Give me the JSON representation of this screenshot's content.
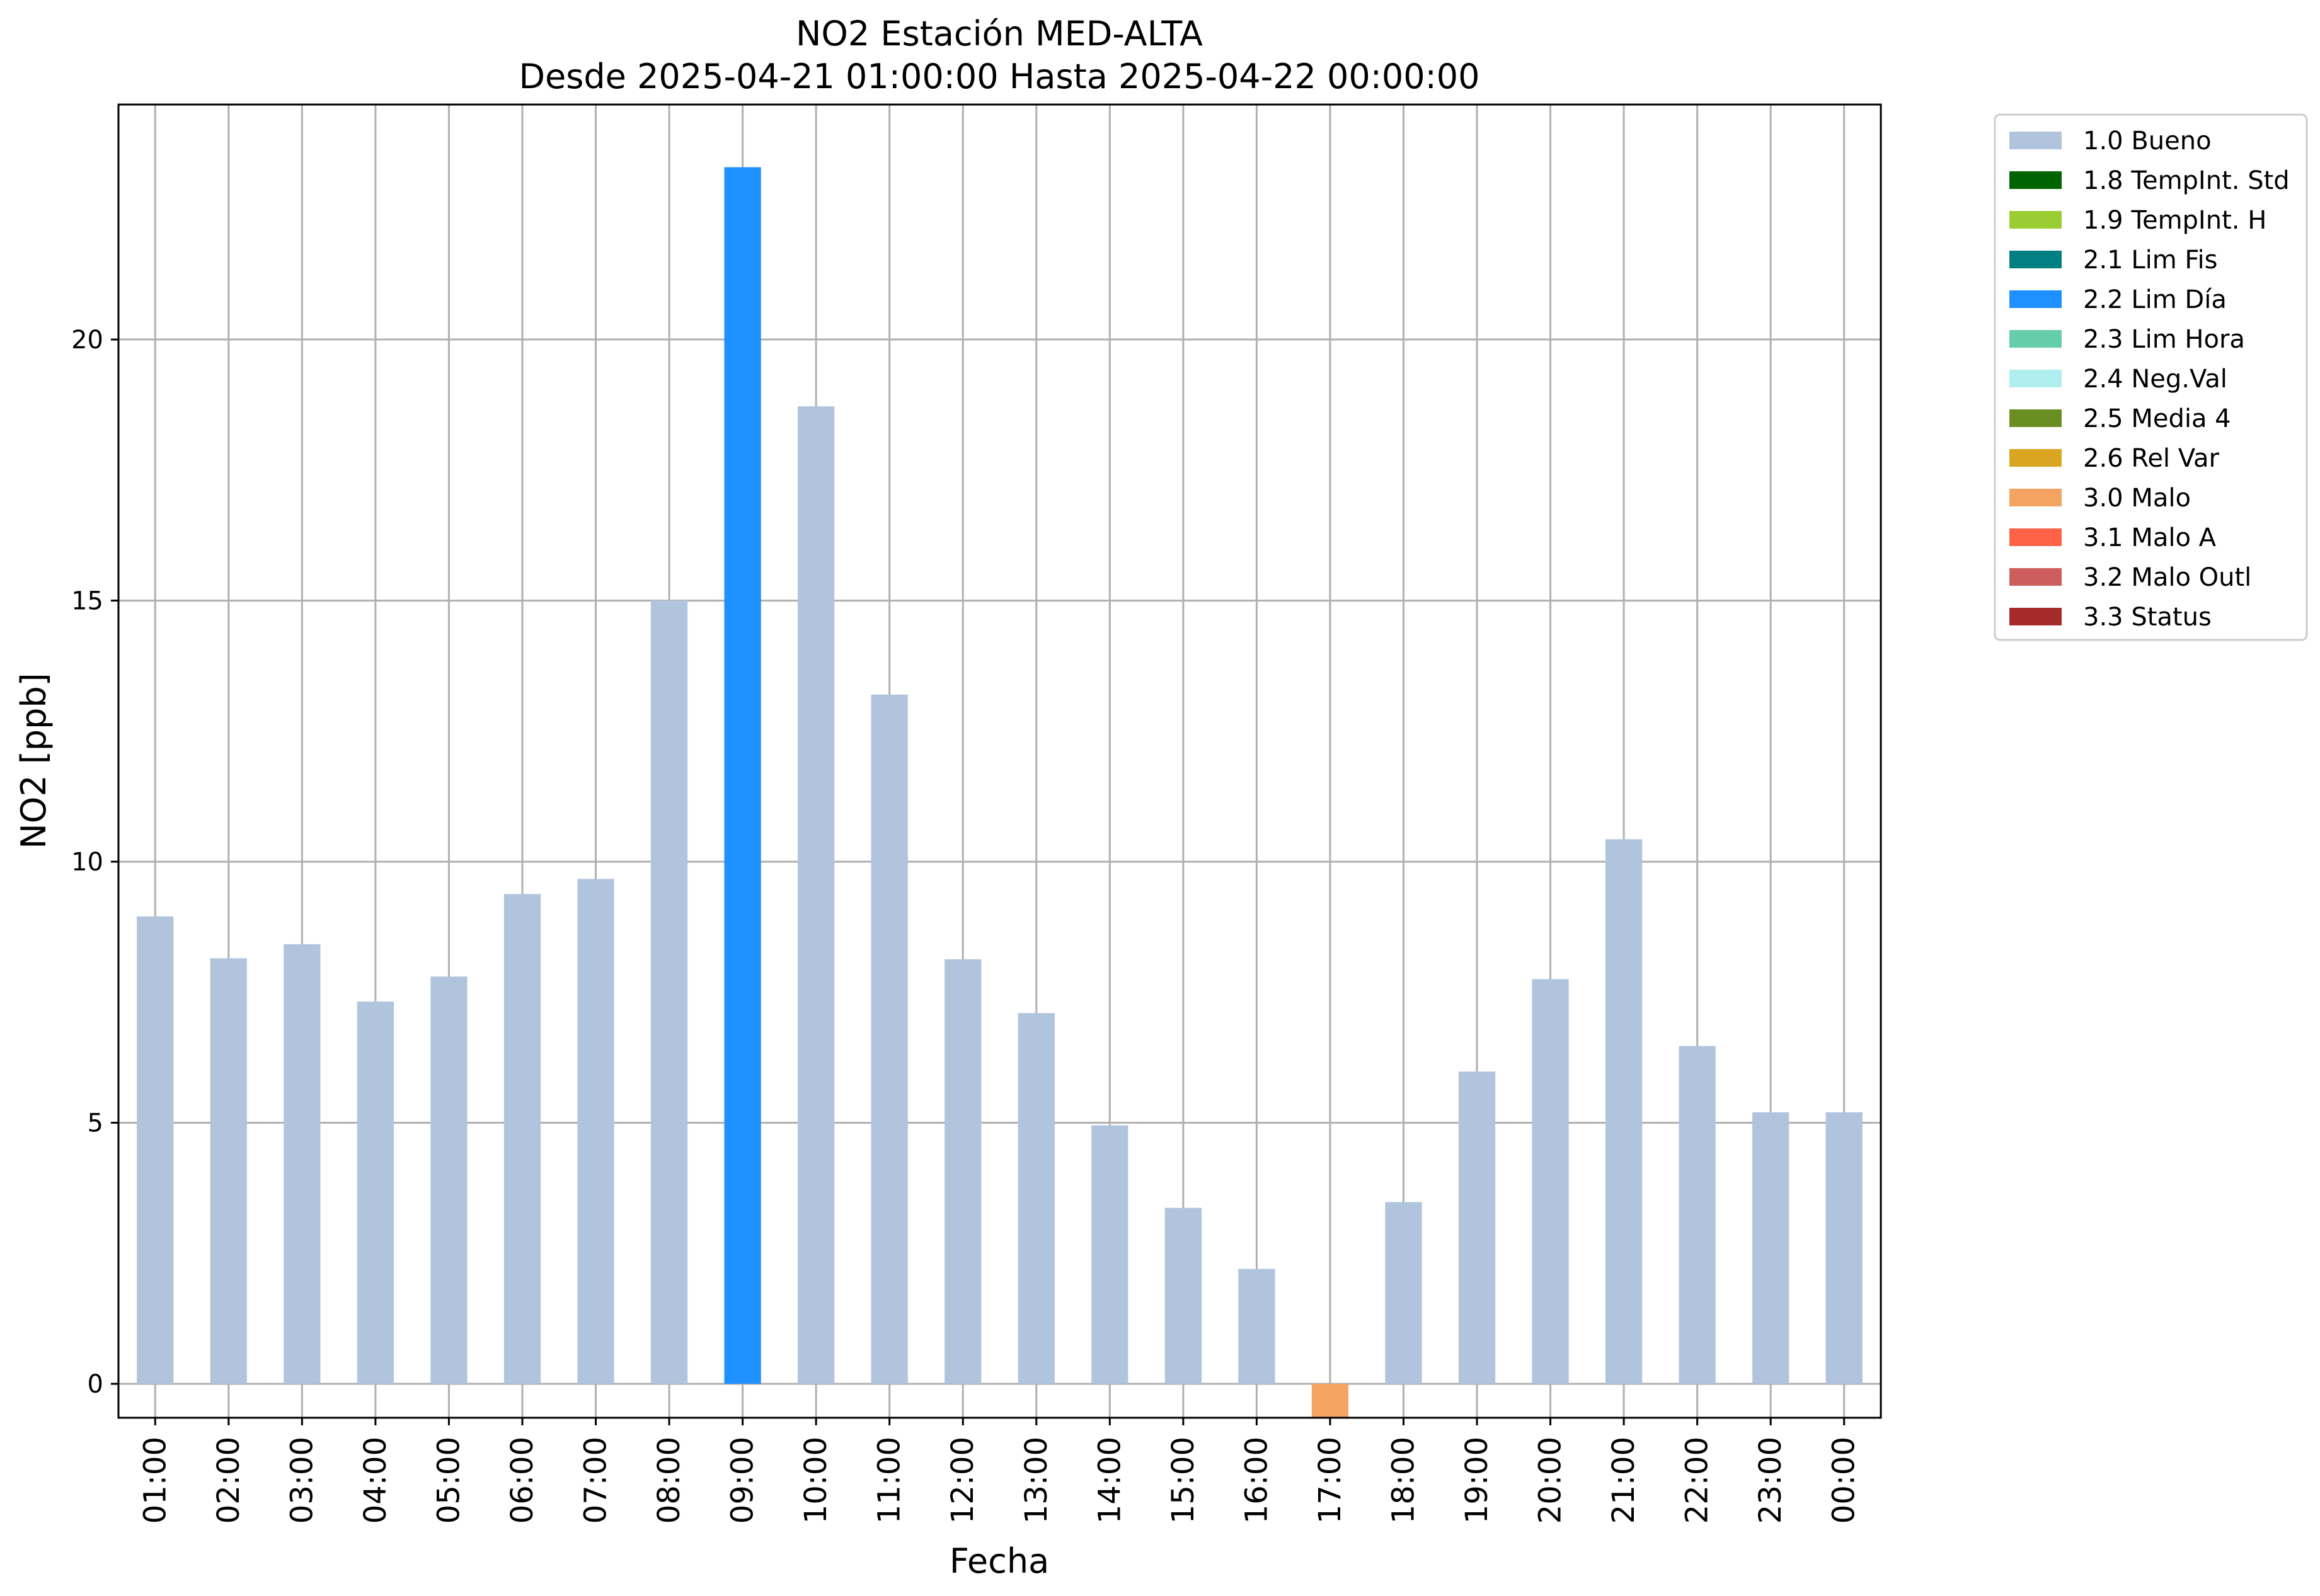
{
  "chart_data": {
    "type": "bar",
    "title": "NO2 Estación MED-ALTA",
    "subtitle": "Desde 2025-04-21 01:00:00 Hasta 2025-04-22 00:00:00",
    "xlabel": "Fecha",
    "ylabel": "NO2 [ppb]",
    "ylim": [
      -0.65,
      24.5
    ],
    "yticks": [
      0,
      5,
      10,
      15,
      20
    ],
    "grid": true,
    "legend_position": "outside-right-top",
    "categories": [
      "01:00",
      "02:00",
      "03:00",
      "04:00",
      "05:00",
      "06:00",
      "07:00",
      "08:00",
      "09:00",
      "10:00",
      "11:00",
      "12:00",
      "13:00",
      "14:00",
      "15:00",
      "16:00",
      "17:00",
      "18:00",
      "19:00",
      "20:00",
      "21:00",
      "22:00",
      "23:00",
      "00:00"
    ],
    "values": [
      8.95,
      8.15,
      8.42,
      7.32,
      7.8,
      9.38,
      9.67,
      15.0,
      23.3,
      18.72,
      13.2,
      8.13,
      7.1,
      4.95,
      3.37,
      2.2,
      -0.65,
      3.48,
      5.98,
      7.75,
      10.43,
      6.47,
      5.2,
      5.2
    ],
    "flags": [
      "1.0 Bueno",
      "1.0 Bueno",
      "1.0 Bueno",
      "1.0 Bueno",
      "1.0 Bueno",
      "1.0 Bueno",
      "1.0 Bueno",
      "1.0 Bueno",
      "2.2 Lim Día",
      "1.0 Bueno",
      "1.0 Bueno",
      "1.0 Bueno",
      "1.0 Bueno",
      "1.0 Bueno",
      "1.0 Bueno",
      "1.0 Bueno",
      "3.0 Malo",
      "1.0 Bueno",
      "1.0 Bueno",
      "1.0 Bueno",
      "1.0 Bueno",
      "1.0 Bueno",
      "1.0 Bueno",
      "1.0 Bueno"
    ],
    "legend": [
      {
        "label": "1.0 Bueno",
        "color": "#b0c4de"
      },
      {
        "label": "1.8 TempInt. Std",
        "color": "#006400"
      },
      {
        "label": "1.9 TempInt. H",
        "color": "#9acd32"
      },
      {
        "label": "2.1 Lim Fis",
        "color": "#008080"
      },
      {
        "label": "2.2 Lim Día",
        "color": "#1e90ff"
      },
      {
        "label": "2.3 Lim Hora",
        "color": "#66cdaa"
      },
      {
        "label": "2.4 Neg.Val",
        "color": "#afeeee"
      },
      {
        "label": "2.5 Media 4",
        "color": "#6b8e23"
      },
      {
        "label": "2.6 Rel Var",
        "color": "#daa520"
      },
      {
        "label": "3.0 Malo",
        "color": "#f4a460"
      },
      {
        "label": "3.1 Malo A",
        "color": "#ff6347"
      },
      {
        "label": "3.2 Malo Outl",
        "color": "#cd5c5c"
      },
      {
        "label": "3.3 Status",
        "color": "#a52a2a"
      }
    ]
  }
}
